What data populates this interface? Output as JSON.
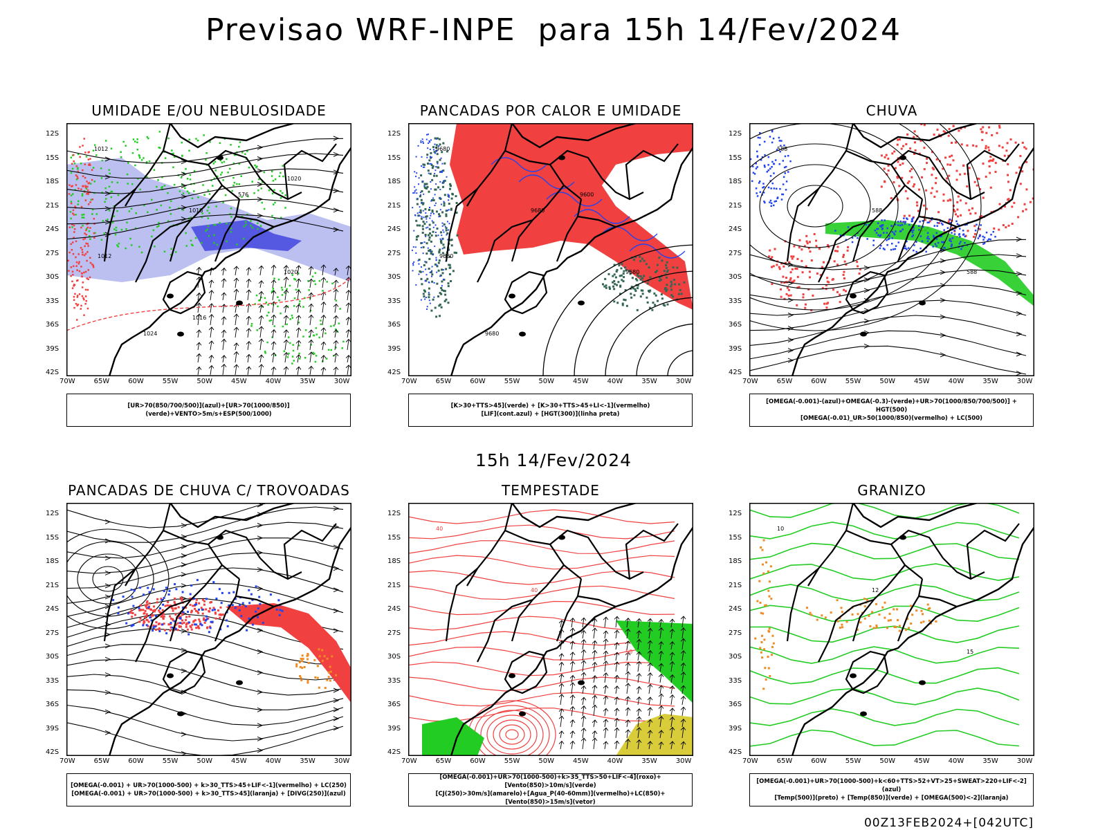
{
  "title": "Previsao WRF-INPE  para 15h 14/Fev/2024",
  "subtitle": "15h 14/Fev/2024",
  "footer": "00Z13FEB2024+[042UTC]",
  "lat_ticks": [
    "12S",
    "15S",
    "18S",
    "21S",
    "24S",
    "27S",
    "30S",
    "33S",
    "36S",
    "39S",
    "42S"
  ],
  "lon_ticks": [
    "70W",
    "65W",
    "60W",
    "55W",
    "50W",
    "45W",
    "40W",
    "35W",
    "30W"
  ],
  "panels": [
    {
      "title": "UMIDADE E/OU NEBULOSIDADE",
      "legend": [
        "[UR>70(850/700/500)](azul)+[UR>70(1000/850)](verde)+VENTO>5m/s+ESP(500/1000)"
      ],
      "style": "umidade",
      "labels": [
        "1012",
        "1016",
        "1020",
        "1024",
        "576",
        "1012",
        "1016",
        "1020"
      ]
    },
    {
      "title": "PANCADAS POR CALOR E UMIDADE",
      "legend": [
        "[K>30+TTS>45](verde) + [K>30+TTS>45+LI<-1](vermelho)",
        "[LIF](cont.azul) + [HGT(300)](linha preta)"
      ],
      "style": "calor",
      "labels": [
        "9680",
        "9680",
        "9680",
        "9680",
        "9600",
        "9680"
      ]
    },
    {
      "title": "CHUVA",
      "legend": [
        "[OMEGA(-0.001)-(azul)+OMEGA(-0.3)-(verde)+UR>70(1000/850/700/500)] + HGT(500)",
        "[OMEGA(-0.01)_UR>50(1000/850)(vermelho) + LC(500)"
      ],
      "style": "chuva",
      "labels": [
        "588",
        "588",
        "588"
      ]
    },
    {
      "title": "PANCADAS DE CHUVA C/ TROVOADAS",
      "legend": [
        "[OMEGA(-0.001) + UR>70(1000-500) + k>30_TTS>45+LIF<-1](vermelho) + LC(250)",
        "[OMEGA(-0.001) + UR>70(1000-500) + k>30_TTS>45](laranja) + [DIVG(250)](azul)"
      ],
      "style": "trovoadas",
      "labels": []
    },
    {
      "title": "TEMPESTADE",
      "legend": [
        "[OMEGA(-0.001)+UR>70(1000-500)+k>35_TTS>50+LIF<-4](roxo)+[Vento(850)>10m/s](verde)",
        "[CJ(250)>30m/s](amarelo)+[Agua_P(40-60mm)](vermelho)+LC(850)+[Vento(850)>15m/s](vetor)"
      ],
      "style": "tempestade",
      "labels": [
        "40",
        "40",
        "50"
      ]
    },
    {
      "title": "GRANIZO",
      "legend": [
        "[OMEGA(-0.001)+UR>70(1000-500)+k<60+TTS>52+VT>25+SWEAT>220+LIF<-2](azul)",
        "[Temp(500)](preto) + [Temp(850)](verde) + [OMEGA(500)<-2](laranja)"
      ],
      "style": "granizo",
      "labels": [
        "10",
        "12",
        "15"
      ]
    }
  ],
  "colors": {
    "red": "#f04040",
    "green": "#22cc22",
    "blue": "#2244ee",
    "lavender": "#aab0ee",
    "darkteal": "#336655",
    "yellow": "#d8cc3a",
    "orange": "#f08a22"
  }
}
